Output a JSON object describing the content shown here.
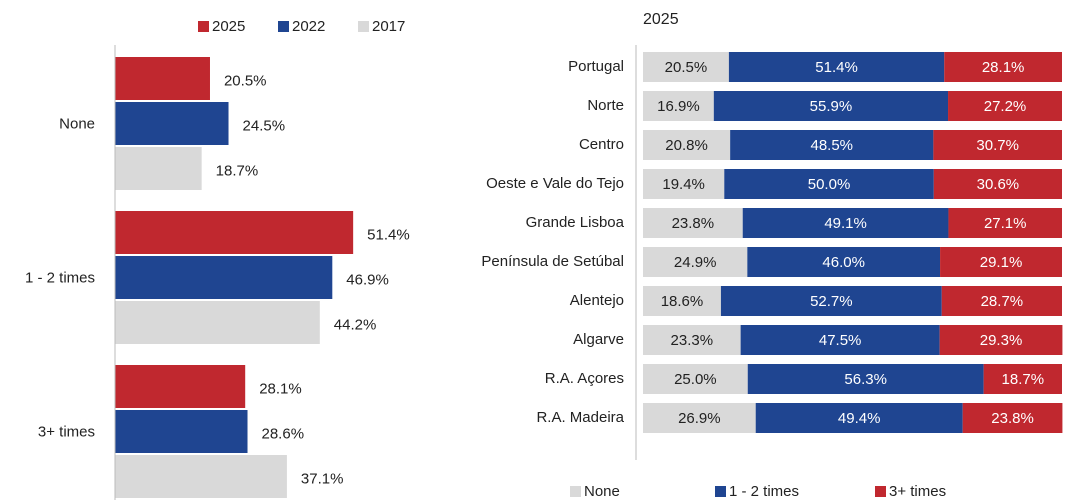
{
  "chart_data": [
    {
      "type": "grouped_hbar",
      "categories": [
        "None",
        "1 - 2 times",
        "3+ times"
      ],
      "series": [
        {
          "name": "2025",
          "color": "#c0282f",
          "values": [
            20.5,
            51.4,
            28.1
          ],
          "value_labels": [
            "20.5%",
            "51.4%",
            "28.1%"
          ]
        },
        {
          "name": "2022",
          "color": "#1f4591",
          "values": [
            24.5,
            46.9,
            28.6
          ],
          "value_labels": [
            "24.5%",
            "46.9%",
            "28.6%"
          ]
        },
        {
          "name": "2017",
          "color": "#d9d9d9",
          "values": [
            18.7,
            44.2,
            37.1
          ],
          "value_labels": [
            "18.7%",
            "44.2%",
            "37.1%"
          ]
        }
      ],
      "xlim": [
        0,
        60
      ],
      "legend": "top"
    },
    {
      "type": "stacked_hbar",
      "title": "2025",
      "categories": [
        "Portugal",
        "Norte",
        "Centro",
        "Oeste e Vale do Tejo",
        "Grande Lisboa",
        "Península de Setúbal",
        "Alentejo",
        "Algarve",
        "R.A. Açores",
        "R.A. Madeira"
      ],
      "series": [
        {
          "name": "None",
          "color": "#d9d9d9",
          "values": [
            20.5,
            16.9,
            20.8,
            19.4,
            23.8,
            24.9,
            18.6,
            23.3,
            25.0,
            26.9
          ],
          "value_labels": [
            "20.5%",
            "16.9%",
            "20.8%",
            "19.4%",
            "23.8%",
            "24.9%",
            "18.6%",
            "23.3%",
            "25.0%",
            "26.9%"
          ]
        },
        {
          "name": "1 - 2 times",
          "color": "#1f4591",
          "values": [
            51.4,
            55.9,
            48.5,
            50.0,
            49.1,
            46.0,
            52.7,
            47.5,
            56.3,
            49.4
          ],
          "value_labels": [
            "51.4%",
            "55.9%",
            "48.5%",
            "50.0%",
            "49.1%",
            "46.0%",
            "52.7%",
            "47.5%",
            "56.3%",
            "49.4%"
          ]
        },
        {
          "name": "3+ times",
          "color": "#c0282f",
          "values": [
            28.1,
            27.2,
            30.7,
            30.6,
            27.1,
            29.1,
            28.7,
            29.3,
            18.7,
            23.8
          ],
          "value_labels": [
            "28.1%",
            "27.2%",
            "30.7%",
            "30.6%",
            "27.1%",
            "29.1%",
            "28.7%",
            "29.3%",
            "18.7%",
            "23.8%"
          ]
        }
      ],
      "xlim": [
        0,
        100
      ],
      "legend": "bottom"
    }
  ]
}
